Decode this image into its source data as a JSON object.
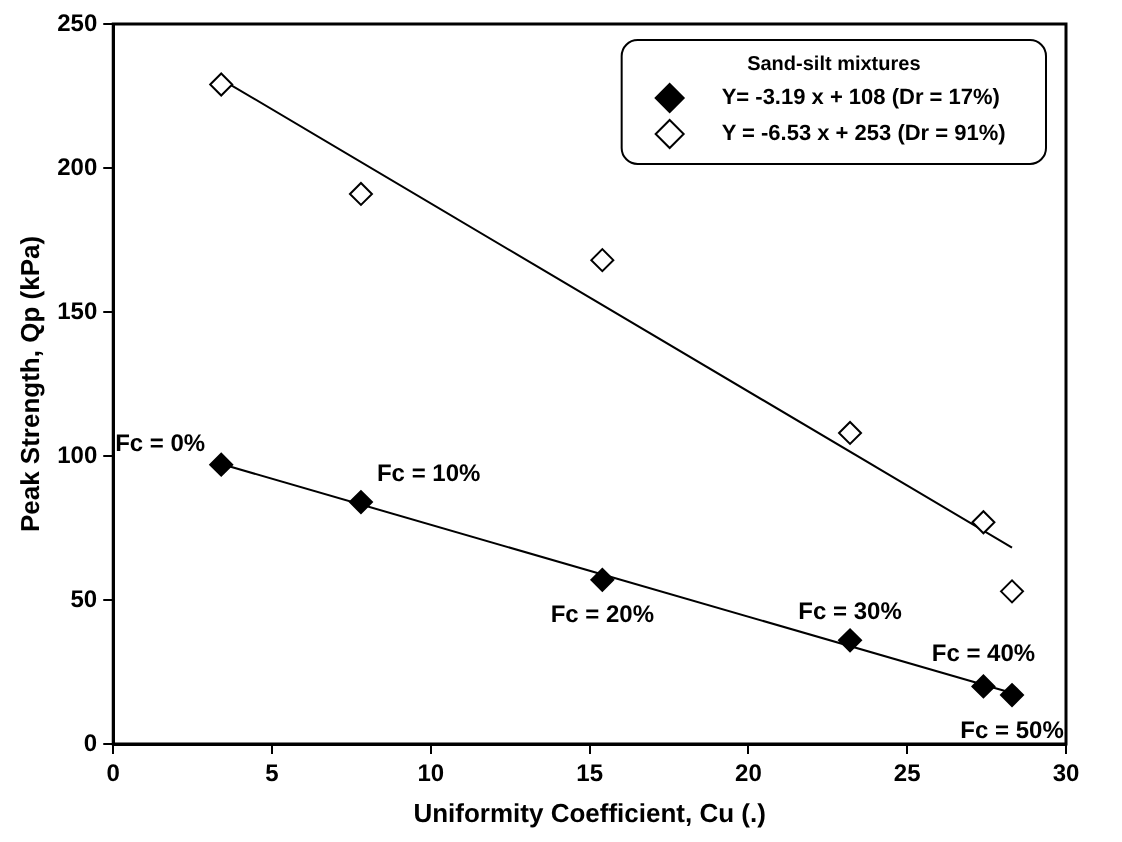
{
  "chart_data": {
    "type": "scatter",
    "xlabel": "Uniformity Coefficient, Cu (.)",
    "ylabel": "Peak Strength, Qp (kPa)",
    "legend_title": "Sand-silt mixtures",
    "legend": "top right",
    "marker": "diamond",
    "grid": false,
    "xlim": [
      0,
      30
    ],
    "xticks": [
      0,
      5,
      10,
      15,
      20,
      25,
      30
    ],
    "ylim": [
      0,
      250
    ],
    "yticks": [
      0,
      50,
      100,
      150,
      200,
      250
    ],
    "series": [
      {
        "name": "Y= -3.19 x + 108 (Dr = 17%)",
        "color": "#000000",
        "x": [
          3.4,
          7.8,
          15.4,
          23.2,
          27.4,
          28.3
        ],
        "values": [
          97,
          84,
          57,
          36,
          20,
          17
        ]
      },
      {
        "name": "Y = -6.53 x + 253 (Dr = 91%)",
        "color": "#000000",
        "x": [
          3.4,
          7.8,
          15.4,
          23.2,
          27.4,
          28.3
        ],
        "values": [
          229,
          191,
          168,
          108,
          77,
          53
        ]
      },
      {
        "type": "line",
        "marker": "none",
        "color": "#000000",
        "x": [
          3.4,
          28.3
        ],
        "values": [
          97.2,
          17.7
        ]
      },
      {
        "type": "line",
        "marker": "none",
        "color": "#000000",
        "x": [
          3.4,
          28.3
        ],
        "values": [
          230.8,
          68.2
        ]
      }
    ],
    "annotations": [
      {
        "text": "Fc = 0%",
        "x": 3.4,
        "y": 97
      },
      {
        "text": "Fc = 10%",
        "x": 7.8,
        "y": 84
      },
      {
        "text": "Fc = 20%",
        "x": 15.4,
        "y": 57
      },
      {
        "text": "Fc = 30%",
        "x": 23.2,
        "y": 36
      },
      {
        "text": "Fc = 40%",
        "x": 27.4,
        "y": 20
      },
      {
        "text": "Fc = 50%",
        "x": 28.3,
        "y": 17
      }
    ]
  }
}
